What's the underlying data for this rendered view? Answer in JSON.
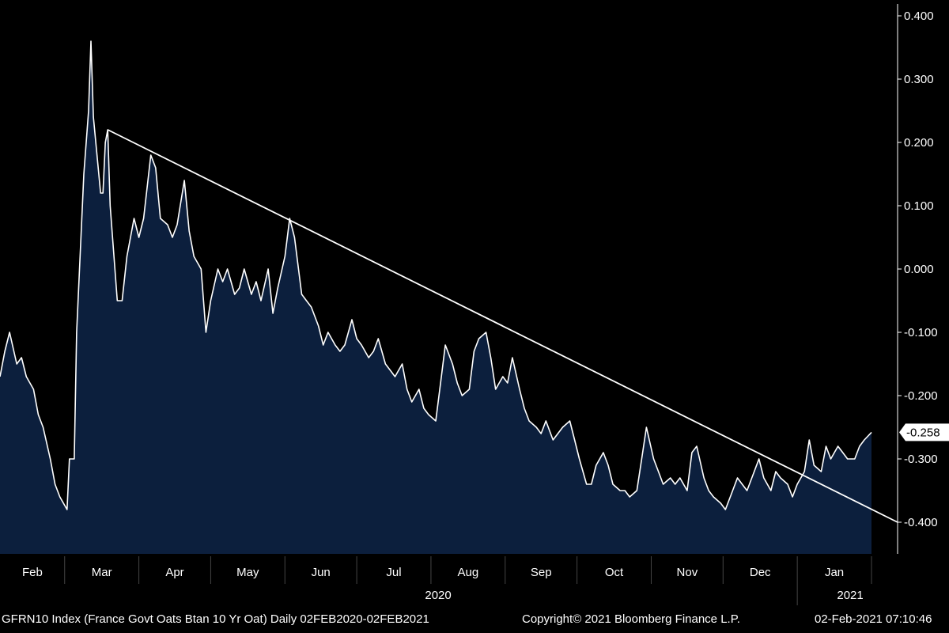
{
  "chart_data": {
    "type": "area",
    "ticker": "GFRN10 Index (France Govt Oats Btan 10 Yr Oat)",
    "frequency": "Daily",
    "date_range": "02FEB2020-02FEB2021",
    "last_value_label": "-0.258",
    "y_ticks": [
      "0.400",
      "0.300",
      "0.200",
      "0.100",
      "0.000",
      "-0.100",
      "-0.200",
      "-0.300",
      "-0.400"
    ],
    "ylim": [
      -0.45,
      0.42
    ],
    "x_month_labels": [
      "Feb",
      "Mar",
      "Apr",
      "May",
      "Jun",
      "Jul",
      "Aug",
      "Sep",
      "Oct",
      "Nov",
      "Dec",
      "Jan"
    ],
    "year_labels": [
      "2020",
      "2021"
    ],
    "month_starts": [
      "2020-02-01",
      "2020-03-01",
      "2020-04-01",
      "2020-05-01",
      "2020-06-01",
      "2020-07-01",
      "2020-08-01",
      "2020-09-01",
      "2020-10-01",
      "2020-11-01",
      "2020-12-01",
      "2021-01-01",
      "2021-02-01"
    ],
    "series": [
      {
        "values": [
          [
            "2020-02-03",
            -0.17
          ],
          [
            "2020-02-05",
            -0.13
          ],
          [
            "2020-02-07",
            -0.1
          ],
          [
            "2020-02-10",
            -0.15
          ],
          [
            "2020-02-12",
            -0.14
          ],
          [
            "2020-02-14",
            -0.17
          ],
          [
            "2020-02-17",
            -0.19
          ],
          [
            "2020-02-19",
            -0.23
          ],
          [
            "2020-02-21",
            -0.25
          ],
          [
            "2020-02-24",
            -0.3
          ],
          [
            "2020-02-26",
            -0.34
          ],
          [
            "2020-02-28",
            -0.36
          ],
          [
            "2020-03-02",
            -0.38
          ],
          [
            "2020-03-03",
            -0.3
          ],
          [
            "2020-03-05",
            -0.3
          ],
          [
            "2020-03-06",
            -0.1
          ],
          [
            "2020-03-09",
            0.15
          ],
          [
            "2020-03-11",
            0.25
          ],
          [
            "2020-03-12",
            0.36
          ],
          [
            "2020-03-13",
            0.24
          ],
          [
            "2020-03-16",
            0.12
          ],
          [
            "2020-03-17",
            0.12
          ],
          [
            "2020-03-18",
            0.2
          ],
          [
            "2020-03-19",
            0.22
          ],
          [
            "2020-03-20",
            0.1
          ],
          [
            "2020-03-23",
            -0.05
          ],
          [
            "2020-03-25",
            -0.05
          ],
          [
            "2020-03-27",
            0.02
          ],
          [
            "2020-03-30",
            0.08
          ],
          [
            "2020-04-01",
            0.05
          ],
          [
            "2020-04-03",
            0.08
          ],
          [
            "2020-04-06",
            0.18
          ],
          [
            "2020-04-08",
            0.16
          ],
          [
            "2020-04-10",
            0.08
          ],
          [
            "2020-04-13",
            0.07
          ],
          [
            "2020-04-15",
            0.05
          ],
          [
            "2020-04-17",
            0.07
          ],
          [
            "2020-04-20",
            0.14
          ],
          [
            "2020-04-22",
            0.06
          ],
          [
            "2020-04-24",
            0.02
          ],
          [
            "2020-04-27",
            0.0
          ],
          [
            "2020-04-29",
            -0.1
          ],
          [
            "2020-05-01",
            -0.05
          ],
          [
            "2020-05-04",
            0.0
          ],
          [
            "2020-05-06",
            -0.02
          ],
          [
            "2020-05-08",
            0.0
          ],
          [
            "2020-05-11",
            -0.04
          ],
          [
            "2020-05-13",
            -0.03
          ],
          [
            "2020-05-15",
            0.0
          ],
          [
            "2020-05-18",
            -0.04
          ],
          [
            "2020-05-20",
            -0.02
          ],
          [
            "2020-05-22",
            -0.05
          ],
          [
            "2020-05-25",
            0.0
          ],
          [
            "2020-05-27",
            -0.07
          ],
          [
            "2020-05-29",
            -0.03
          ],
          [
            "2020-06-01",
            0.02
          ],
          [
            "2020-06-03",
            0.08
          ],
          [
            "2020-06-05",
            0.05
          ],
          [
            "2020-06-08",
            -0.04
          ],
          [
            "2020-06-10",
            -0.05
          ],
          [
            "2020-06-12",
            -0.06
          ],
          [
            "2020-06-15",
            -0.09
          ],
          [
            "2020-06-17",
            -0.12
          ],
          [
            "2020-06-19",
            -0.1
          ],
          [
            "2020-06-22",
            -0.12
          ],
          [
            "2020-06-24",
            -0.13
          ],
          [
            "2020-06-26",
            -0.12
          ],
          [
            "2020-06-29",
            -0.08
          ],
          [
            "2020-07-01",
            -0.11
          ],
          [
            "2020-07-03",
            -0.12
          ],
          [
            "2020-07-06",
            -0.14
          ],
          [
            "2020-07-08",
            -0.13
          ],
          [
            "2020-07-10",
            -0.11
          ],
          [
            "2020-07-13",
            -0.15
          ],
          [
            "2020-07-15",
            -0.16
          ],
          [
            "2020-07-17",
            -0.17
          ],
          [
            "2020-07-20",
            -0.15
          ],
          [
            "2020-07-22",
            -0.19
          ],
          [
            "2020-07-24",
            -0.21
          ],
          [
            "2020-07-27",
            -0.19
          ],
          [
            "2020-07-29",
            -0.22
          ],
          [
            "2020-07-31",
            -0.23
          ],
          [
            "2020-08-03",
            -0.24
          ],
          [
            "2020-08-05",
            -0.18
          ],
          [
            "2020-08-07",
            -0.12
          ],
          [
            "2020-08-10",
            -0.15
          ],
          [
            "2020-08-12",
            -0.18
          ],
          [
            "2020-08-14",
            -0.2
          ],
          [
            "2020-08-17",
            -0.19
          ],
          [
            "2020-08-19",
            -0.13
          ],
          [
            "2020-08-21",
            -0.11
          ],
          [
            "2020-08-24",
            -0.1
          ],
          [
            "2020-08-26",
            -0.14
          ],
          [
            "2020-08-28",
            -0.19
          ],
          [
            "2020-08-31",
            -0.17
          ],
          [
            "2020-09-02",
            -0.18
          ],
          [
            "2020-09-04",
            -0.14
          ],
          [
            "2020-09-07",
            -0.19
          ],
          [
            "2020-09-09",
            -0.22
          ],
          [
            "2020-09-11",
            -0.24
          ],
          [
            "2020-09-14",
            -0.25
          ],
          [
            "2020-09-16",
            -0.26
          ],
          [
            "2020-09-18",
            -0.24
          ],
          [
            "2020-09-21",
            -0.27
          ],
          [
            "2020-09-23",
            -0.26
          ],
          [
            "2020-09-25",
            -0.25
          ],
          [
            "2020-09-28",
            -0.24
          ],
          [
            "2020-09-30",
            -0.27
          ],
          [
            "2020-10-02",
            -0.3
          ],
          [
            "2020-10-05",
            -0.34
          ],
          [
            "2020-10-07",
            -0.34
          ],
          [
            "2020-10-09",
            -0.31
          ],
          [
            "2020-10-12",
            -0.29
          ],
          [
            "2020-10-14",
            -0.31
          ],
          [
            "2020-10-16",
            -0.34
          ],
          [
            "2020-10-19",
            -0.35
          ],
          [
            "2020-10-21",
            -0.35
          ],
          [
            "2020-10-23",
            -0.36
          ],
          [
            "2020-10-26",
            -0.35
          ],
          [
            "2020-10-28",
            -0.3
          ],
          [
            "2020-10-30",
            -0.25
          ],
          [
            "2020-11-02",
            -0.3
          ],
          [
            "2020-11-04",
            -0.32
          ],
          [
            "2020-11-06",
            -0.34
          ],
          [
            "2020-11-09",
            -0.33
          ],
          [
            "2020-11-11",
            -0.34
          ],
          [
            "2020-11-13",
            -0.33
          ],
          [
            "2020-11-16",
            -0.35
          ],
          [
            "2020-11-18",
            -0.29
          ],
          [
            "2020-11-20",
            -0.28
          ],
          [
            "2020-11-23",
            -0.33
          ],
          [
            "2020-11-25",
            -0.35
          ],
          [
            "2020-11-27",
            -0.36
          ],
          [
            "2020-11-30",
            -0.37
          ],
          [
            "2020-12-02",
            -0.38
          ],
          [
            "2020-12-04",
            -0.36
          ],
          [
            "2020-12-07",
            -0.33
          ],
          [
            "2020-12-09",
            -0.34
          ],
          [
            "2020-12-11",
            -0.35
          ],
          [
            "2020-12-14",
            -0.32
          ],
          [
            "2020-12-16",
            -0.3
          ],
          [
            "2020-12-18",
            -0.33
          ],
          [
            "2020-12-21",
            -0.35
          ],
          [
            "2020-12-23",
            -0.32
          ],
          [
            "2020-12-25",
            -0.33
          ],
          [
            "2020-12-28",
            -0.34
          ],
          [
            "2020-12-30",
            -0.36
          ],
          [
            "2021-01-01",
            -0.34
          ],
          [
            "2021-01-04",
            -0.32
          ],
          [
            "2021-01-06",
            -0.27
          ],
          [
            "2021-01-08",
            -0.31
          ],
          [
            "2021-01-11",
            -0.32
          ],
          [
            "2021-01-13",
            -0.28
          ],
          [
            "2021-01-15",
            -0.3
          ],
          [
            "2021-01-18",
            -0.28
          ],
          [
            "2021-01-20",
            -0.29
          ],
          [
            "2021-01-22",
            -0.3
          ],
          [
            "2021-01-25",
            -0.3
          ],
          [
            "2021-01-27",
            -0.28
          ],
          [
            "2021-01-29",
            -0.27
          ],
          [
            "2021-02-01",
            -0.258
          ]
        ]
      }
    ],
    "trendline": {
      "start": [
        "2020-03-19",
        0.22
      ],
      "end": [
        "2021-02-02",
        -0.4
      ]
    }
  },
  "footer": {
    "left": "GFRN10 Index (France Govt Oats Btan 10 Yr Oat)  Daily 02FEB2020-02FEB2021",
    "center": "Copyright© 2021 Bloomberg Finance L.P.",
    "right": "02-Feb-2021 07:10:46"
  },
  "colors": {
    "background": "#000000",
    "area_fill": "#0c1f3d",
    "line": "#ffffff",
    "text": "#ffffff"
  }
}
